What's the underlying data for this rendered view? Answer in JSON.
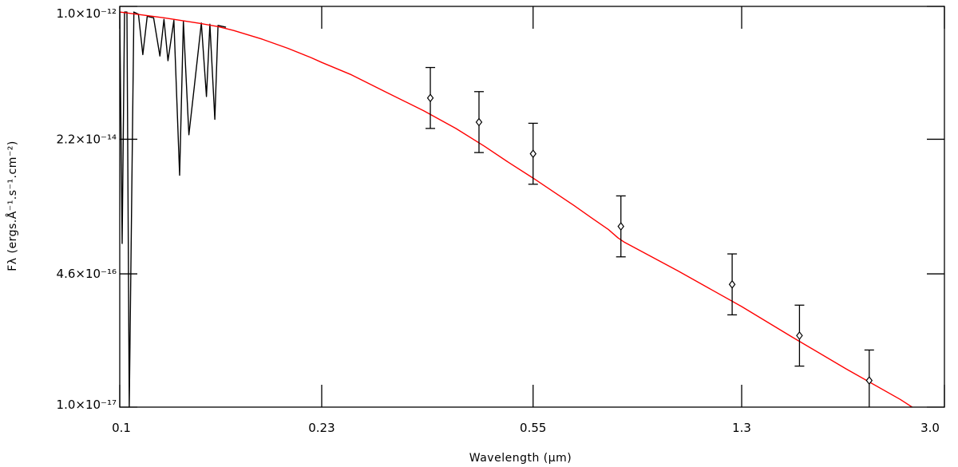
{
  "chart_data": {
    "type": "line",
    "xscale": "log",
    "yscale": "log",
    "xlim": [
      0.1,
      3.0
    ],
    "ylim": [
      1e-17,
      1e-12
    ],
    "xlabel": "Wavelength (μm)",
    "ylabel": "Fλ (ergs.Å⁻¹.s⁻¹.cm⁻²)",
    "x_ticks": [
      {
        "value": 0.1,
        "label": "0.1"
      },
      {
        "value": 0.23,
        "label": "0.23"
      },
      {
        "value": 0.55,
        "label": "0.55"
      },
      {
        "value": 1.3,
        "label": "1.3"
      },
      {
        "value": 3.0,
        "label": "3.0"
      }
    ],
    "y_ticks": [
      {
        "value": 1e-12,
        "label": "1.0×10⁻¹²"
      },
      {
        "value": 2.2e-14,
        "label": "2.2×10⁻¹⁴"
      },
      {
        "value": 4.6e-16,
        "label": "4.6×10⁻¹⁶"
      },
      {
        "value": 1e-17,
        "label": "1.0×10⁻¹⁷"
      }
    ],
    "grid": false,
    "legend": "none",
    "series": [
      {
        "color": "#000000",
        "style": "line",
        "x": [
          0.1,
          0.101,
          0.102,
          0.103,
          0.104,
          0.106,
          0.108,
          0.11,
          0.112,
          0.115,
          0.118,
          0.12,
          0.122,
          0.125,
          0.128,
          0.13,
          0.133,
          0.136,
          0.14,
          0.143,
          0.145,
          0.148,
          0.15,
          0.155
        ],
        "y": [
          8.3e-13,
          1.1e-15,
          8.5e-13,
          8.5e-13,
          1e-17,
          8.5e-13,
          8e-13,
          2.5e-13,
          7.5e-13,
          7.2e-13,
          2.4e-13,
          6.9e-13,
          2.1e-13,
          6.7e-13,
          7.8e-15,
          6.5e-13,
          2.5e-14,
          1e-13,
          6.2e-13,
          7.5e-14,
          6e-13,
          3.9e-14,
          5.8e-13,
          5.5e-13
        ]
      },
      {
        "color": "#ff0000",
        "style": "line",
        "x": [
          0.1,
          0.11,
          0.12,
          0.13,
          0.14,
          0.15,
          0.16,
          0.17,
          0.18,
          0.2,
          0.22,
          0.23,
          0.26,
          0.3,
          0.35,
          0.4,
          0.45,
          0.5,
          0.55,
          0.6,
          0.65,
          0.7,
          0.75,
          0.78,
          0.8,
          1.0,
          1.3,
          1.6,
          2.0,
          2.5,
          3.0
        ],
        "y": [
          8.5e-13,
          7.8e-13,
          7.2e-13,
          6.6e-13,
          6.1e-13,
          5.6e-13,
          5e-13,
          4.4e-13,
          3.9e-13,
          3e-13,
          2.3e-13,
          2e-13,
          1.4e-13,
          8.5e-14,
          5e-14,
          3e-14,
          1.8e-14,
          1.1e-14,
          7.2e-15,
          4.8e-15,
          3.3e-15,
          2.3e-15,
          1.65e-15,
          1.3e-15,
          1.15e-15,
          5e-16,
          1.8e-16,
          7.5e-17,
          3e-17,
          1.25e-17,
          5.5e-18
        ]
      },
      {
        "color": "#000000",
        "style": "scatter-errorbar",
        "x": [
          0.36,
          0.44,
          0.55,
          0.79,
          1.25,
          1.65,
          2.2
        ],
        "y": [
          7.2e-14,
          3.6e-14,
          1.45e-14,
          1.8e-15,
          3.4e-16,
          7.8e-17,
          2.15e-17
        ],
        "yerr_factor": 2.4
      }
    ]
  }
}
